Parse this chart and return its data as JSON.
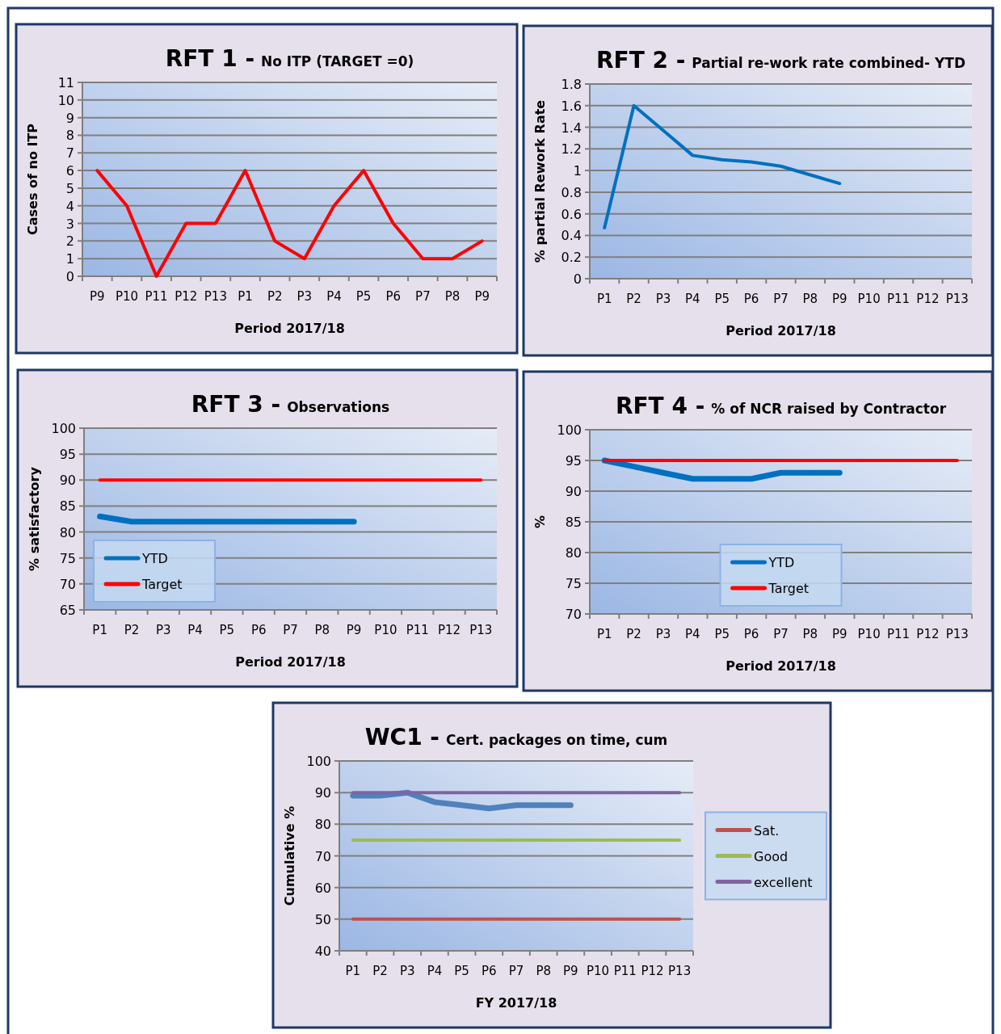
{
  "chart_data": [
    {
      "type": "line",
      "title": "RFT 1 -",
      "subtitle": "No ITP (TARGET =0)",
      "xlabel": "Period 2017/18",
      "ylabel": "Cases of no ITP",
      "categories": [
        "P9",
        "P10",
        "P11",
        "P12",
        "P13",
        "P1",
        "P2",
        "P3",
        "P4",
        "P5",
        "P6",
        "P7",
        "P8",
        "P9"
      ],
      "values": [
        6,
        4,
        0,
        3,
        3,
        6,
        2,
        1,
        4,
        6,
        3,
        1,
        1,
        2
      ],
      "color": "#ff0000",
      "ylim": [
        0,
        11
      ],
      "yticks": [
        0,
        1,
        2,
        3,
        4,
        5,
        6,
        7,
        8,
        9,
        10,
        11
      ],
      "grid": "y"
    },
    {
      "type": "line",
      "title": "RFT 2 -",
      "subtitle": "Partial re-work rate combined- YTD",
      "xlabel": "Period 2017/18",
      "ylabel": "% partial Rework  Rate",
      "categories": [
        "P1",
        "P2",
        "P3",
        "P4",
        "P5",
        "P6",
        "P7",
        "P8",
        "P9",
        "P10",
        "P11",
        "P12",
        "P13"
      ],
      "values": [
        0.47,
        1.6,
        1.37,
        1.14,
        1.1,
        1.08,
        1.04,
        0.96,
        0.88,
        null,
        null,
        null,
        null
      ],
      "color": "#0070c0",
      "ylim": [
        0,
        1.8
      ],
      "yticks": [
        0,
        0.2,
        0.4,
        0.6,
        0.8,
        1,
        1.2,
        1.4,
        1.6,
        1.8
      ],
      "grid": "y"
    },
    {
      "type": "line",
      "title": "RFT 3 -",
      "subtitle": "Observations",
      "xlabel": "Period 2017/18",
      "ylabel": "% satisfactory",
      "categories": [
        "P1",
        "P2",
        "P3",
        "P4",
        "P5",
        "P6",
        "P7",
        "P8",
        "P9",
        "P10",
        "P11",
        "P12",
        "P13"
      ],
      "series": [
        {
          "name": "YTD",
          "color": "#0070c0",
          "values": [
            83,
            82,
            82,
            82,
            82,
            82,
            82,
            82,
            82,
            null,
            null,
            null,
            null
          ]
        },
        {
          "name": "Target",
          "color": "#ff0000",
          "values": [
            90,
            90,
            90,
            90,
            90,
            90,
            90,
            90,
            90,
            90,
            90,
            90,
            90
          ]
        }
      ],
      "ylim": [
        65,
        100
      ],
      "yticks": [
        65,
        70,
        75,
        80,
        85,
        90,
        95,
        100
      ],
      "grid": "y",
      "legend": "bottom left"
    },
    {
      "type": "line",
      "title": "RFT 4 -",
      "subtitle": "% of NCR raised by Contractor",
      "xlabel": "Period 2017/18",
      "ylabel": "%",
      "categories": [
        "P1",
        "P2",
        "P3",
        "P4",
        "P5",
        "P6",
        "P7",
        "P8",
        "P9",
        "P10",
        "P11",
        "P12",
        "P13"
      ],
      "series": [
        {
          "name": "YTD",
          "color": "#0070c0",
          "values": [
            95,
            94,
            93,
            92,
            92,
            92,
            93,
            93,
            93,
            null,
            null,
            null,
            null
          ]
        },
        {
          "name": "Target",
          "color": "#ff0000",
          "values": [
            95,
            95,
            95,
            95,
            95,
            95,
            95,
            95,
            95,
            95,
            95,
            95,
            95
          ]
        }
      ],
      "ylim": [
        70,
        100
      ],
      "yticks": [
        70,
        75,
        80,
        85,
        90,
        95,
        100
      ],
      "grid": "y",
      "legend": "bottom"
    },
    {
      "type": "line",
      "title": "WC1 -",
      "subtitle": "Cert. packages on time, cum",
      "xlabel": "FY 2017/18",
      "ylabel": "Cumulative  %",
      "categories": [
        "P1",
        "P2",
        "P3",
        "P4",
        "P5",
        "P6",
        "P7",
        "P8",
        "P9",
        "P10",
        "P11",
        "P12",
        "P13"
      ],
      "series": [
        {
          "color": "#4f81bd",
          "values": [
            89,
            89,
            90,
            87,
            86,
            85,
            86,
            86,
            86,
            null,
            null,
            null,
            null
          ]
        },
        {
          "name": "Sat.",
          "color": "#c0504d",
          "values": [
            50,
            50,
            50,
            50,
            50,
            50,
            50,
            50,
            50,
            50,
            50,
            50,
            50
          ]
        },
        {
          "name": "Good",
          "color": "#9bbb59",
          "values": [
            75,
            75,
            75,
            75,
            75,
            75,
            75,
            75,
            75,
            75,
            75,
            75,
            75
          ]
        },
        {
          "name": "excellent",
          "color": "#8064a2",
          "values": [
            90,
            90,
            90,
            90,
            90,
            90,
            90,
            90,
            90,
            90,
            90,
            90,
            90
          ]
        }
      ],
      "ylim": [
        40,
        100
      ],
      "yticks": [
        40,
        50,
        60,
        70,
        80,
        90,
        100
      ],
      "grid": "y",
      "legend": "right"
    }
  ]
}
